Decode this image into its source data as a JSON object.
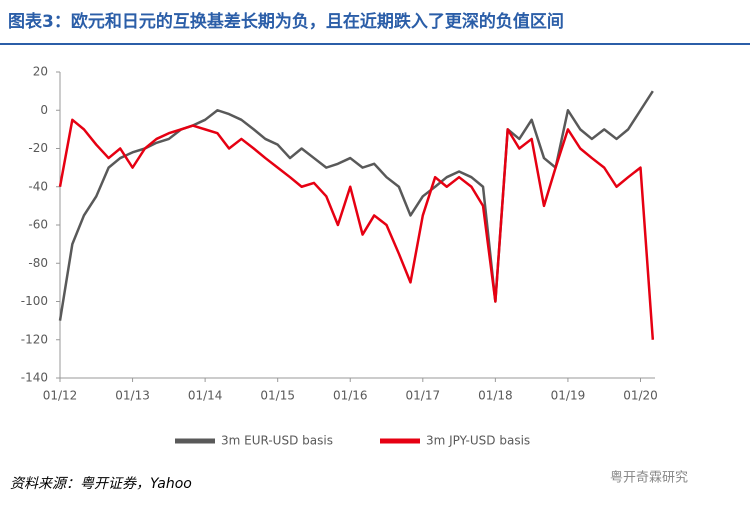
{
  "chart_data": {
    "type": "line",
    "title": "图表3：欧元和日元的互换基差长期为负，且在近期跌入了更深的负值区间",
    "source": "资料来源：粤开证券，Yahoo",
    "watermark": "粤开奇霖研究",
    "x": [
      2012,
      2012.17,
      2012.33,
      2012.5,
      2012.67,
      2012.83,
      2013,
      2013.17,
      2013.33,
      2013.5,
      2013.67,
      2013.83,
      2014,
      2014.17,
      2014.33,
      2014.5,
      2014.67,
      2014.83,
      2015,
      2015.17,
      2015.33,
      2015.5,
      2015.67,
      2015.83,
      2016,
      2016.17,
      2016.33,
      2016.5,
      2016.67,
      2016.83,
      2017,
      2017.17,
      2017.33,
      2017.5,
      2017.67,
      2017.83,
      2018,
      2018.17,
      2018.33,
      2018.5,
      2018.67,
      2018.83,
      2019,
      2019.17,
      2019.33,
      2019.5,
      2019.67,
      2019.83,
      2020,
      2020.17
    ],
    "series": [
      {
        "name": "3m EUR-USD basis",
        "color": "#595959",
        "values": [
          -110,
          -70,
          -55,
          -45,
          -30,
          -25,
          -22,
          -20,
          -17,
          -15,
          -10,
          -8,
          -5,
          0,
          -2,
          -5,
          -10,
          -15,
          -18,
          -25,
          -20,
          -25,
          -30,
          -28,
          -25,
          -30,
          -28,
          -35,
          -40,
          -55,
          -45,
          -40,
          -35,
          -32,
          -35,
          -40,
          -100,
          -10,
          -15,
          -5,
          -25,
          -30,
          0,
          -10,
          -15,
          -10,
          -15,
          -10,
          0,
          10
        ]
      },
      {
        "name": "3m JPY-USD basis",
        "color": "#e60012",
        "values": [
          -40,
          -5,
          -10,
          -18,
          -25,
          -20,
          -30,
          -20,
          -15,
          -12,
          -10,
          -8,
          -10,
          -12,
          -20,
          -15,
          -20,
          -25,
          -30,
          -35,
          -40,
          -38,
          -45,
          -60,
          -40,
          -65,
          -55,
          -60,
          -75,
          -90,
          -55,
          -35,
          -40,
          -35,
          -40,
          -50,
          -100,
          -10,
          -20,
          -15,
          -50,
          -30,
          -10,
          -20,
          -25,
          -30,
          -40,
          -35,
          -30,
          -120
        ]
      }
    ],
    "xlim": [
      2012,
      2020.2
    ],
    "xticks": [
      {
        "value": 2012,
        "label": "01/12"
      },
      {
        "value": 2013,
        "label": "01/13"
      },
      {
        "value": 2014,
        "label": "01/14"
      },
      {
        "value": 2015,
        "label": "01/15"
      },
      {
        "value": 2016,
        "label": "01/16"
      },
      {
        "value": 2017,
        "label": "01/17"
      },
      {
        "value": 2018,
        "label": "01/18"
      },
      {
        "value": 2019,
        "label": "01/19"
      },
      {
        "value": 2020,
        "label": "01/20"
      }
    ],
    "ylim": [
      -140,
      20
    ],
    "yticks": [
      -140,
      -120,
      -100,
      -80,
      -60,
      -40,
      -20,
      0,
      20
    ]
  }
}
